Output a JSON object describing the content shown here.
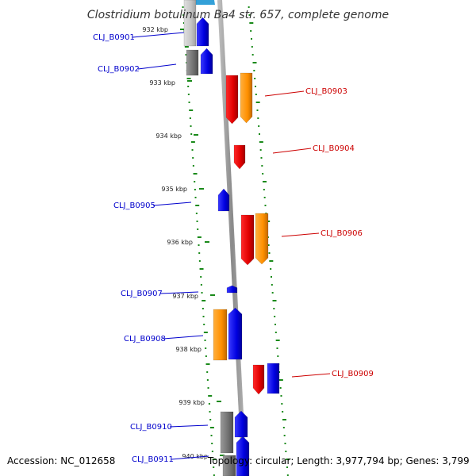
{
  "title": "Clostridium botulinum Ba4 str. 657, complete genome",
  "ticks": [
    {
      "label": "932 kbp"
    },
    {
      "label": "933 kbp"
    },
    {
      "label": "934 kbp"
    },
    {
      "label": "935 kbp"
    },
    {
      "label": "936 kbp"
    },
    {
      "label": "937 kbp"
    },
    {
      "label": "938 kbp"
    },
    {
      "label": "939 kbp"
    },
    {
      "label": "940 kbp"
    }
  ],
  "genes": [
    {
      "label": "CLJ_B0901",
      "strand": "reverse",
      "color": "#0000cc"
    },
    {
      "label": "CLJ_B0902",
      "strand": "reverse",
      "color": "#0000cc"
    },
    {
      "label": "CLJ_B0903",
      "strand": "forward",
      "color": "#cc0000"
    },
    {
      "label": "CLJ_B0904",
      "strand": "forward",
      "color": "#cc0000"
    },
    {
      "label": "CLJ_B0905",
      "strand": "reverse",
      "color": "#0000cc"
    },
    {
      "label": "CLJ_B0906",
      "strand": "forward",
      "color": "#cc0000"
    },
    {
      "label": "CLJ_B0907",
      "strand": "reverse",
      "color": "#0000cc"
    },
    {
      "label": "CLJ_B0908",
      "strand": "reverse",
      "color": "#0000cc"
    },
    {
      "label": "CLJ_B0909",
      "strand": "forward",
      "color": "#cc0000"
    },
    {
      "label": "CLJ_B0910",
      "strand": "reverse",
      "color": "#0000cc"
    },
    {
      "label": "CLJ_B0911",
      "strand": "reverse",
      "color": "#0000cc"
    }
  ],
  "colors": {
    "forward_cds": "#ff0000",
    "reverse_cds": "#0000ff",
    "gene_feature": "#ff9900",
    "reverse_gene_feature": "#777777",
    "backbone": "#999999",
    "gc_dots": "#1a8a1a"
  },
  "footer": {
    "accession": "Accession: NC_012658",
    "summary": "Topology: circular; Length: 3,977,794 bp; Genes: 3,799"
  }
}
